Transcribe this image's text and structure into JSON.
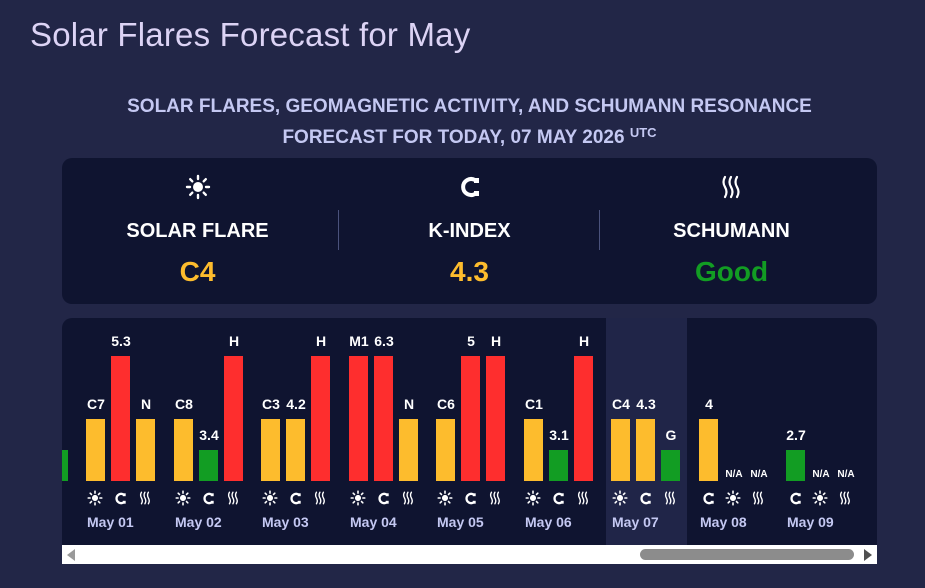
{
  "page": {
    "title": "Solar Flares Forecast for May"
  },
  "forecast": {
    "subtitle_line1": "SOLAR FLARES, GEOMAGNETIC ACTIVITY, AND SCHUMANN RESONANCE",
    "subtitle_line2": "FORECAST FOR TODAY, 07 MAY 2026",
    "tz": "UTC"
  },
  "summary": [
    {
      "icon": "sun-icon",
      "label": "SOLAR FLARE",
      "value": "C4",
      "color": "#fdbc2d"
    },
    {
      "icon": "magnet-icon",
      "label": "K-INDEX",
      "value": "4.3",
      "color": "#fdbc2d"
    },
    {
      "icon": "wave-icon",
      "label": "SCHUMANN",
      "value": "Good",
      "color": "#129d23"
    }
  ],
  "colors": {
    "yellow": "#fdbc2d",
    "red": "#fe2e2e",
    "green": "#129d23"
  },
  "chart_data": {
    "type": "bar",
    "categories": [
      "May 01",
      "May 02",
      "May 03",
      "May 04",
      "May 05",
      "May 06",
      "May 07",
      "May 08",
      "May 09"
    ],
    "series": [
      {
        "values": [
          "C7",
          "C8",
          "C3",
          "M1",
          "C6",
          "C1",
          "C4",
          null,
          null
        ]
      },
      {
        "values": [
          5.3,
          3.4,
          4.2,
          6.3,
          5,
          3.1,
          4.3,
          4,
          2.7
        ]
      },
      {
        "values": [
          "N",
          "H",
          "H",
          "N",
          "H",
          "H",
          "G",
          "N/A",
          "N/A"
        ]
      }
    ],
    "legend": [
      "sun-icon",
      "magnet-icon",
      "wave-icon"
    ]
  },
  "days": [
    {
      "label": "May 01",
      "bars": [
        {
          "text": "C7",
          "level": 2,
          "color": "yellow"
        },
        {
          "text": "5.3",
          "level": 4,
          "color": "red"
        },
        {
          "text": "N",
          "level": 2,
          "color": "yellow"
        }
      ],
      "icons": [
        "sun-icon",
        "magnet-icon",
        "wave-icon"
      ]
    },
    {
      "label": "May 02",
      "bars": [
        {
          "text": "C8",
          "level": 2,
          "color": "yellow"
        },
        {
          "text": "3.4",
          "level": 1,
          "color": "green"
        },
        {
          "text": "H",
          "level": 4,
          "color": "red"
        }
      ],
      "icons": [
        "sun-icon",
        "magnet-icon",
        "wave-icon"
      ]
    },
    {
      "label": "May 03",
      "bars": [
        {
          "text": "C3",
          "level": 2,
          "color": "yellow"
        },
        {
          "text": "4.2",
          "level": 2,
          "color": "yellow"
        },
        {
          "text": "H",
          "level": 4,
          "color": "red"
        }
      ],
      "icons": [
        "sun-icon",
        "magnet-icon",
        "wave-icon"
      ]
    },
    {
      "label": "May 04",
      "bars": [
        {
          "text": "M1",
          "level": 4,
          "color": "red"
        },
        {
          "text": "6.3",
          "level": 4,
          "color": "red"
        },
        {
          "text": "N",
          "level": 2,
          "color": "yellow"
        }
      ],
      "icons": [
        "sun-icon",
        "magnet-icon",
        "wave-icon"
      ]
    },
    {
      "label": "May 05",
      "bars": [
        {
          "text": "C6",
          "level": 2,
          "color": "yellow"
        },
        {
          "text": "5",
          "level": 4,
          "color": "red"
        },
        {
          "text": "H",
          "level": 4,
          "color": "red"
        }
      ],
      "icons": [
        "sun-icon",
        "magnet-icon",
        "wave-icon"
      ]
    },
    {
      "label": "May 06",
      "bars": [
        {
          "text": "C1",
          "level": 2,
          "color": "yellow"
        },
        {
          "text": "3.1",
          "level": 1,
          "color": "green"
        },
        {
          "text": "H",
          "level": 4,
          "color": "red"
        }
      ],
      "icons": [
        "sun-icon",
        "magnet-icon",
        "wave-icon"
      ]
    },
    {
      "label": "May 07",
      "bars": [
        {
          "text": "C4",
          "level": 2,
          "color": "yellow"
        },
        {
          "text": "4.3",
          "level": 2,
          "color": "yellow"
        },
        {
          "text": "G",
          "level": 1,
          "color": "green"
        }
      ],
      "icons": [
        "sun-icon",
        "magnet-icon",
        "wave-icon"
      ]
    },
    {
      "label": "May 08",
      "bars": [
        {
          "text": "4",
          "level": 2,
          "color": "yellow"
        },
        {
          "text": "N/A",
          "level": 0,
          "color": "none"
        },
        {
          "text": "N/A",
          "level": 0,
          "color": "none"
        }
      ],
      "icons": [
        "magnet-icon",
        "sun-icon",
        "wave-icon"
      ]
    },
    {
      "label": "May 09",
      "bars": [
        {
          "text": "2.7",
          "level": 1,
          "color": "green"
        },
        {
          "text": "N/A",
          "level": 0,
          "color": "none"
        },
        {
          "text": "N/A",
          "level": 0,
          "color": "none"
        }
      ],
      "icons": [
        "magnet-icon",
        "sun-icon",
        "wave-icon"
      ]
    }
  ]
}
